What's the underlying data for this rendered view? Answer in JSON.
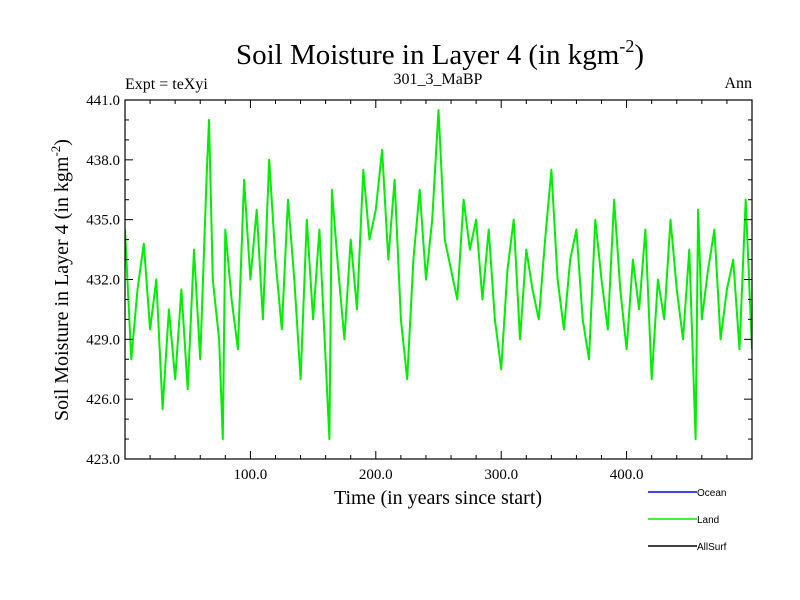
{
  "chart_data": {
    "type": "line",
    "title": "Soil Moisture in Layer 4 (in kgm",
    "title_sup": "-2",
    "title_close": ")",
    "subtitle_left": "Expt = teXyi",
    "subtitle_center": "301_3_MaBP",
    "subtitle_right": "Ann",
    "xlabel": "Time (in years since start)",
    "ylabel": "Soil Moisture in Layer 4 (in kgm",
    "ylabel_sup": "-2",
    "ylabel_close": ")",
    "xlim": [
      0,
      500
    ],
    "ylim": [
      423.0,
      441.0
    ],
    "x_ticks": [
      100,
      200,
      300,
      400
    ],
    "x_tick_labels": [
      "100.0",
      "200.0",
      "300.0",
      "400.0"
    ],
    "y_ticks": [
      423,
      426,
      429,
      432,
      435,
      438,
      441
    ],
    "y_tick_labels": [
      "423.0",
      "426.0",
      "429.0",
      "432.0",
      "435.0",
      "438.0",
      "441.0"
    ],
    "legend": {
      "placement": "bottom-right",
      "entries": [
        {
          "name": "Ocean",
          "color": "#0000ff"
        },
        {
          "name": "Land",
          "color": "#00ee00"
        },
        {
          "name": "AllSurf",
          "color": "#000000"
        }
      ]
    },
    "series": [
      {
        "name": "Land",
        "color": "#00ee00",
        "x": [
          0,
          5,
          10,
          15,
          20,
          25,
          30,
          35,
          40,
          45,
          50,
          55,
          60,
          65,
          67,
          70,
          75,
          78,
          80,
          85,
          90,
          95,
          100,
          105,
          110,
          115,
          120,
          125,
          130,
          135,
          140,
          145,
          150,
          155,
          160,
          163,
          165,
          170,
          175,
          180,
          185,
          190,
          195,
          200,
          205,
          210,
          215,
          220,
          225,
          230,
          235,
          240,
          245,
          250,
          255,
          260,
          265,
          270,
          275,
          280,
          285,
          290,
          295,
          300,
          305,
          310,
          315,
          320,
          325,
          330,
          335,
          340,
          345,
          350,
          355,
          360,
          365,
          370,
          375,
          380,
          385,
          390,
          395,
          400,
          405,
          410,
          415,
          420,
          425,
          430,
          435,
          440,
          445,
          450,
          455,
          457,
          460,
          465,
          470,
          475,
          480,
          485,
          490,
          495,
          500
        ],
        "values": [
          434.5,
          428.0,
          431.5,
          433.8,
          429.5,
          432.0,
          425.5,
          430.5,
          427.0,
          431.5,
          426.5,
          433.5,
          428.0,
          437.0,
          440.0,
          432.0,
          429.0,
          424.0,
          434.5,
          431.0,
          428.5,
          437.0,
          432.0,
          435.5,
          430.0,
          438.0,
          433.0,
          429.5,
          436.0,
          432.0,
          427.0,
          435.0,
          430.0,
          434.5,
          428.0,
          424.0,
          436.5,
          432.5,
          429.0,
          434.0,
          430.5,
          437.5,
          434.0,
          435.5,
          438.5,
          433.0,
          437.0,
          430.0,
          427.0,
          433.0,
          436.5,
          432.0,
          435.0,
          440.5,
          434.0,
          432.5,
          431.0,
          436.0,
          433.5,
          435.0,
          431.0,
          434.5,
          430.0,
          427.5,
          432.5,
          435.0,
          429.0,
          433.5,
          431.5,
          430.0,
          434.0,
          437.5,
          432.0,
          429.5,
          433.0,
          434.5,
          430.0,
          428.0,
          435.0,
          432.0,
          429.5,
          436.0,
          431.5,
          428.5,
          433.0,
          430.5,
          434.5,
          427.0,
          432.0,
          430.0,
          435.0,
          431.5,
          429.0,
          433.5,
          424.0,
          435.5,
          430.0,
          432.5,
          434.5,
          429.0,
          431.5,
          433.0,
          428.5,
          436.0,
          428.5
        ]
      }
    ]
  }
}
